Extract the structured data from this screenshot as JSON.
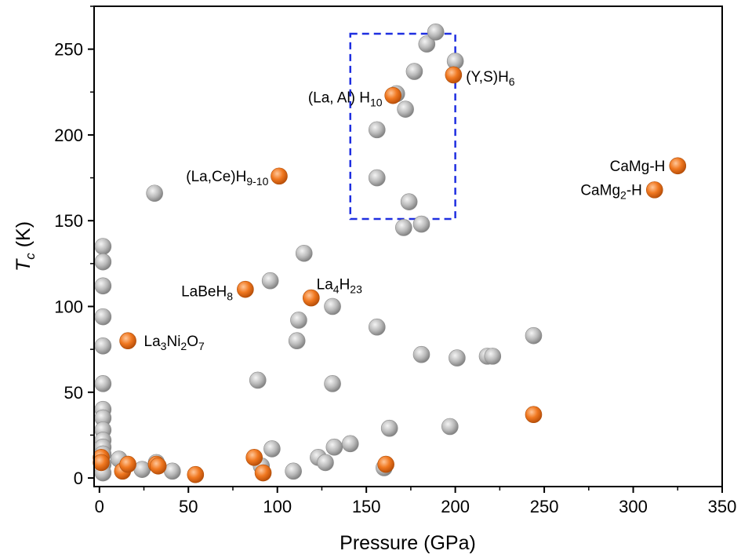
{
  "chart_data": {
    "type": "scatter",
    "xlabel": "Pressure (GPa)",
    "ylabel_italic": "T",
    "ylabel_sub": "c",
    "ylabel_rest": " (K)",
    "xlim": [
      -3,
      350
    ],
    "ylim": [
      -5,
      275
    ],
    "xticks": [
      0,
      50,
      100,
      150,
      200,
      250,
      300,
      350
    ],
    "yticks": [
      0,
      50,
      100,
      150,
      200,
      250
    ],
    "grid": false,
    "colors": {
      "gray": "#b4b4b4",
      "orange": "#f07820",
      "box": "#1f2fe0"
    },
    "series": [
      {
        "color": "gray",
        "points": [
          [
            2,
            135
          ],
          [
            2,
            126
          ],
          [
            2,
            112
          ],
          [
            2,
            94
          ],
          [
            2,
            77
          ],
          [
            2,
            55
          ],
          [
            2,
            40
          ],
          [
            2,
            35
          ],
          [
            2,
            28
          ],
          [
            2,
            22
          ],
          [
            2,
            18
          ],
          [
            2,
            14
          ],
          [
            2,
            8
          ],
          [
            2,
            3
          ],
          [
            11,
            11
          ],
          [
            24,
            5
          ],
          [
            32,
            9
          ],
          [
            41,
            4
          ],
          [
            31,
            166
          ],
          [
            89,
            57
          ],
          [
            91,
            7
          ],
          [
            96,
            115
          ],
          [
            97,
            17
          ],
          [
            109,
            4
          ],
          [
            111,
            80
          ],
          [
            112,
            92
          ],
          [
            115,
            131
          ],
          [
            123,
            12
          ],
          [
            127,
            9
          ],
          [
            131,
            100
          ],
          [
            131,
            55
          ],
          [
            132,
            18
          ],
          [
            141,
            20
          ],
          [
            156,
            88
          ],
          [
            156,
            175
          ],
          [
            156,
            203
          ],
          [
            160,
            6
          ],
          [
            163,
            29
          ],
          [
            167,
            224
          ],
          [
            172,
            215
          ],
          [
            171,
            146
          ],
          [
            174,
            161
          ],
          [
            177,
            237
          ],
          [
            181,
            148
          ],
          [
            181,
            72
          ],
          [
            184,
            253
          ],
          [
            189,
            260
          ],
          [
            197,
            30
          ],
          [
            200,
            243
          ],
          [
            201,
            70
          ],
          [
            218,
            71
          ],
          [
            221,
            71
          ],
          [
            244,
            83
          ]
        ]
      },
      {
        "color": "orange",
        "points": [
          [
            1,
            12
          ],
          [
            1,
            9
          ],
          [
            13,
            4
          ],
          [
            16,
            8
          ],
          [
            32,
            8
          ],
          [
            33,
            7
          ],
          [
            54,
            2
          ],
          [
            87,
            12
          ],
          [
            92,
            3
          ],
          [
            161,
            8
          ],
          [
            244,
            37
          ],
          [
            16,
            80
          ],
          [
            82,
            110
          ],
          [
            119,
            105
          ],
          [
            101,
            176
          ],
          [
            165,
            223
          ],
          [
            199,
            235
          ],
          [
            312,
            168
          ],
          [
            325,
            182
          ]
        ]
      }
    ],
    "annotations": [
      {
        "id": "la3ni2o7",
        "base": "La",
        "parts": [
          [
            "3",
            "s"
          ],
          [
            "Ni",
            ""
          ],
          [
            "2",
            "s"
          ],
          [
            "O",
            ""
          ],
          [
            "7",
            "s"
          ]
        ],
        "x": 25,
        "y": 77,
        "anchor": "start"
      },
      {
        "id": "labeh8",
        "base": "LaBeH",
        "parts": [
          [
            "8",
            "s"
          ]
        ],
        "x": 75,
        "y": 106,
        "anchor": "end"
      },
      {
        "id": "la4h23",
        "base": "La",
        "parts": [
          [
            "4",
            "s"
          ],
          [
            "H",
            ""
          ],
          [
            "23",
            "s"
          ]
        ],
        "x": 122,
        "y": 110,
        "anchor": "start"
      },
      {
        "id": "lace-h",
        "base": "(La,Ce)H",
        "parts": [
          [
            "9-10",
            "s"
          ]
        ],
        "x": 95,
        "y": 173,
        "anchor": "end"
      },
      {
        "id": "laal-h",
        "base": "(La, Al) H",
        "parts": [
          [
            "10",
            "s"
          ]
        ],
        "x": 159,
        "y": 219,
        "anchor": "end"
      },
      {
        "id": "ys-h",
        "base": "(Y,S)H",
        "parts": [
          [
            "6",
            "s"
          ]
        ],
        "x": 206,
        "y": 231,
        "anchor": "start"
      },
      {
        "id": "camg-h",
        "base": "CaMg-H",
        "parts": [],
        "x": 318,
        "y": 179,
        "anchor": "end"
      },
      {
        "id": "camg2-h",
        "base": "CaMg",
        "parts": [
          [
            "2",
            "s"
          ],
          [
            "-H",
            ""
          ]
        ],
        "x": 305,
        "y": 165,
        "anchor": "end"
      }
    ],
    "highlight_box": {
      "x0": 141,
      "x1": 200,
      "y0": 151,
      "y1": 259
    }
  }
}
